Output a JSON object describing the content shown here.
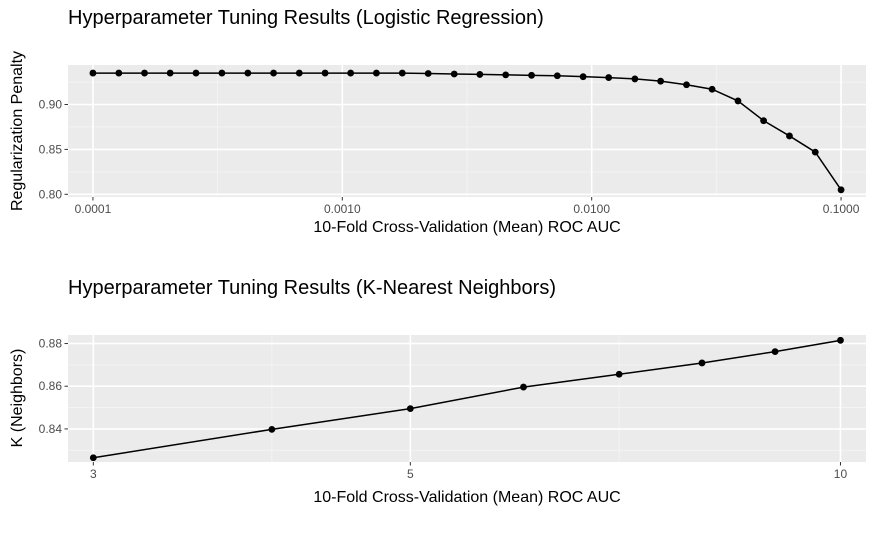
{
  "chart_data": [
    {
      "type": "line",
      "title": "Hyperparameter Tuning Results (Logistic Regression)",
      "xlabel": "10-Fold Cross-Validation (Mean) ROC AUC",
      "ylabel": "Regularization Penalty",
      "x_scale": "log10",
      "xlim_log10": [
        -4.1,
        -0.9
      ],
      "ylim": [
        0.797,
        0.944
      ],
      "x_ticks": [
        {
          "value": 0.0001,
          "label": "0.0001"
        },
        {
          "value": 0.001,
          "label": "0.0010"
        },
        {
          "value": 0.01,
          "label": "0.0100"
        },
        {
          "value": 0.1,
          "label": "0.1000"
        }
      ],
      "y_ticks": [
        {
          "value": 0.8,
          "label": "0.80"
        },
        {
          "value": 0.85,
          "label": "0.85"
        },
        {
          "value": 0.9,
          "label": "0.90"
        }
      ],
      "grid": true,
      "series": [
        {
          "x": [
            0.0001,
            0.000127,
            0.000161,
            0.000204,
            0.000259,
            0.000329,
            0.000418,
            0.00053,
            0.000672,
            0.000853,
            0.00108,
            0.00137,
            0.00174,
            0.00221,
            0.00281,
            0.00356,
            0.00452,
            0.00574,
            0.00728,
            0.00924,
            0.0117,
            0.0149,
            0.0189,
            0.024,
            0.0304,
            0.0386,
            0.0489,
            0.0621,
            0.0788,
            0.1
          ],
          "values": [
            0.935,
            0.935,
            0.935,
            0.935,
            0.935,
            0.935,
            0.935,
            0.935,
            0.935,
            0.935,
            0.935,
            0.935,
            0.935,
            0.9345,
            0.934,
            0.9335,
            0.933,
            0.9325,
            0.932,
            0.931,
            0.93,
            0.9285,
            0.926,
            0.922,
            0.917,
            0.904,
            0.882,
            0.865,
            0.847,
            0.805
          ]
        }
      ]
    },
    {
      "type": "line",
      "title": "Hyperparameter Tuning Results (K-Nearest Neighbors)",
      "xlabel": "10-Fold Cross-Validation (Mean) ROC AUC",
      "ylabel": "K (Neighbors)",
      "x_scale": "log10",
      "xlim": [
        2.88,
        10.42
      ],
      "ylim": [
        0.8245,
        0.884
      ],
      "x_ticks": [
        {
          "value": 3,
          "label": "3"
        },
        {
          "value": 5,
          "label": "5"
        },
        {
          "value": 10,
          "label": "10"
        }
      ],
      "x_minor_ticks": [
        4,
        7
      ],
      "y_ticks": [
        {
          "value": 0.84,
          "label": "0.84"
        },
        {
          "value": 0.86,
          "label": "0.86"
        },
        {
          "value": 0.88,
          "label": "0.88"
        }
      ],
      "grid": true,
      "series": [
        {
          "x": [
            3,
            4,
            5,
            6,
            7,
            8,
            9,
            10
          ],
          "values": [
            0.8265,
            0.8398,
            0.8495,
            0.8596,
            0.8656,
            0.8709,
            0.8762,
            0.8815
          ]
        }
      ]
    }
  ]
}
